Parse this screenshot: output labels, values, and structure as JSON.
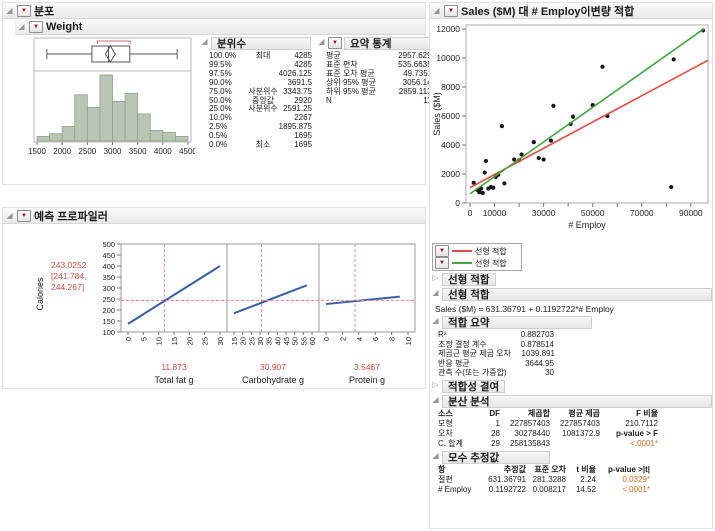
{
  "colors": {
    "fit_red": "#e8483f",
    "fit_green": "#43a83f",
    "profiler_line": "#3a5fa8",
    "crosshair_red": "#ef8a93",
    "histogram_fill": "#b9c6b3",
    "histogram_stroke": "#90a089",
    "red_value_text": "#d04a42",
    "pvalue_orange": "#d2691e",
    "point_black": "#161616",
    "box_stroke": "#555555",
    "bracket_red": "#d96a6a"
  },
  "distribution": {
    "title": "분포",
    "weight": {
      "title": "Weight"
    },
    "quantiles": {
      "title": "분위수",
      "rows": [
        [
          "100.0%",
          "최대",
          "4285"
        ],
        [
          "99.5%",
          "",
          "4285"
        ],
        [
          "97.5%",
          "",
          "4026.125"
        ],
        [
          "90.0%",
          "",
          "3691.5"
        ],
        [
          "75.0%",
          "사분위수",
          "3343.75"
        ],
        [
          "50.0%",
          "중앙값",
          "2920"
        ],
        [
          "25.0%",
          "사분위수",
          "2591.25"
        ],
        [
          "10.0%",
          "",
          "2267"
        ],
        [
          "2.5%",
          "",
          "1895.875"
        ],
        [
          "0.5%",
          "",
          "1695"
        ],
        [
          "0.0%",
          "최소",
          "1695"
        ]
      ]
    },
    "summary": {
      "title": "요약 통계",
      "rows": [
        [
          "평균",
          "2957.6293"
        ],
        [
          "표준 편차",
          "535.66353"
        ],
        [
          "표준 오차 평균",
          "49.73511"
        ],
        [
          "상위 95% 평균",
          "3056.145"
        ],
        [
          "하위 95% 평균",
          "2859.1136"
        ],
        [
          "N",
          "116"
        ]
      ]
    }
  },
  "profiler": {
    "title": "예측 프로파일러",
    "response_label": "Calories",
    "predicted_value": "243.0252",
    "ci_line1": "[241.784,",
    "ci_line2": "244.267]"
  },
  "bivariate": {
    "title": "Sales ($M) 대 # Employ이변량 적합",
    "xlabel": "# Employ",
    "ylabel": "Sales ($M)",
    "legend": [
      {
        "label": "선형 적합",
        "color": "#e8483f"
      },
      {
        "label": "선형 적합",
        "color": "#43a83f"
      }
    ],
    "fit_row_collapsed": "선형 적합",
    "fit_section_title": "선형 적합",
    "equation": "Sales ($M) = 631.36791 + 0.1192722*# Employ",
    "summary_of_fit": {
      "title": "적합 요약",
      "rows": [
        [
          "R²",
          "0.882703"
        ],
        [
          "조정 결정 계수",
          "0.878514"
        ],
        [
          "제곱근 평균 제곱 오차",
          "1039.891"
        ],
        [
          "반응 평균",
          "3644.95"
        ],
        [
          "관측 수(또는 가중합)",
          "30"
        ]
      ]
    },
    "lack_of_fit_title": "적합성 결여",
    "anova": {
      "title": "분산 분석",
      "headers": [
        "소스",
        "DF",
        "제곱합",
        "평균 제곱",
        "F 비율"
      ],
      "rows": [
        [
          "모형",
          "1",
          "227857403",
          "227857403",
          "210.7112"
        ],
        [
          "오차",
          "28",
          "30278440",
          "1081372.9",
          "p-value > F"
        ],
        [
          "C. 합계",
          "29",
          "258135843",
          "",
          "<.0001*"
        ]
      ]
    },
    "params": {
      "title": "모수 추정값",
      "headers": [
        "항",
        "추정값",
        "표준 오차",
        "t 비율",
        "p-value >|t|"
      ],
      "rows": [
        [
          "절편",
          "631.36791",
          "281.3288",
          "2.24",
          "0.0329*"
        ],
        [
          "# Employ",
          "0.1192722",
          "0.008217",
          "14.52",
          "<.0001*"
        ]
      ]
    }
  },
  "chart_data": [
    {
      "type": "bar",
      "variable": "Weight",
      "bin_start": 1500,
      "bin_width": 250,
      "bar_heights_rel": [
        0.07,
        0.11,
        0.22,
        0.7,
        0.51,
        1.0,
        0.6,
        0.72,
        0.41,
        0.16,
        0.13,
        0.07
      ],
      "x_ticks": [
        1500,
        2000,
        2500,
        3000,
        3500,
        4000,
        4500
      ],
      "xlim": [
        1440,
        4560
      ],
      "boxplot": {
        "min": 1695,
        "q1": 2591.25,
        "median": 2920,
        "q3": 3343.75,
        "max": 4285,
        "mean": 2957.63,
        "mean_ci": [
          2859.11,
          3056.14
        ],
        "shortest_half": [
          2700,
          3350
        ]
      }
    },
    {
      "type": "line",
      "title": "예측 프로파일러",
      "ylabel": "Calories",
      "ylim": [
        100,
        500
      ],
      "yticks": [
        100,
        150,
        200,
        250,
        300,
        350,
        400,
        450,
        500
      ],
      "current_y": 243.0252,
      "cells": [
        {
          "xlabel": "Total fat g",
          "xlim": [
            0,
            30
          ],
          "xticks": [
            0,
            5,
            10,
            15,
            20,
            25,
            30
          ],
          "current_x": 11.873,
          "current_x_label": "11.873",
          "line": [
            [
              0,
              137
            ],
            [
              30,
              400
            ]
          ]
        },
        {
          "xlabel": "Carbohydrate g",
          "xlim": [
            15,
            60
          ],
          "xticks": [
            15,
            20,
            25,
            30,
            35,
            40,
            45,
            50,
            55,
            60
          ],
          "current_x": 30.907,
          "current_x_label": "30.907",
          "line": [
            [
              15,
              185
            ],
            [
              57,
              312
            ]
          ]
        },
        {
          "xlabel": "Protein g",
          "xlim": [
            0,
            10
          ],
          "xticks": [
            0,
            2,
            4,
            6,
            8,
            10
          ],
          "current_x": 3.5467,
          "current_x_label": "3.5467",
          "line": [
            [
              0,
              227
            ],
            [
              9,
              261
            ]
          ]
        }
      ]
    },
    {
      "type": "scatter",
      "title": "Sales ($M) 대 # Employ이변량 적합",
      "xlabel": "# Employ",
      "ylabel": "Sales ($M)",
      "xlim": [
        0,
        97000
      ],
      "ylim": [
        0,
        12000
      ],
      "xticks_labeled": [
        0,
        10000,
        30000,
        50000,
        70000,
        90000
      ],
      "xticks_all": [
        0,
        10000,
        20000,
        30000,
        40000,
        50000,
        60000,
        70000,
        80000,
        90000
      ],
      "yticks": [
        0,
        2000,
        4000,
        6000,
        8000,
        10000,
        12000
      ],
      "points": [
        [
          1500,
          1400
        ],
        [
          3000,
          900
        ],
        [
          3800,
          750
        ],
        [
          4500,
          1000
        ],
        [
          5200,
          700
        ],
        [
          6000,
          2100
        ],
        [
          6500,
          2900
        ],
        [
          7500,
          1000
        ],
        [
          8500,
          1100
        ],
        [
          9500,
          1050
        ],
        [
          10500,
          1800
        ],
        [
          11500,
          1950
        ],
        [
          13000,
          5300
        ],
        [
          14000,
          1350
        ],
        [
          18000,
          3000
        ],
        [
          20000,
          2950
        ],
        [
          21000,
          3350
        ],
        [
          26000,
          4200
        ],
        [
          28000,
          3100
        ],
        [
          30000,
          3000
        ],
        [
          33000,
          4300
        ],
        [
          34000,
          6700
        ],
        [
          41000,
          5450
        ],
        [
          42000,
          5950
        ],
        [
          50000,
          6750
        ],
        [
          54000,
          9400
        ],
        [
          56000,
          6000
        ],
        [
          82000,
          1100
        ],
        [
          83000,
          9900
        ],
        [
          95000,
          11900
        ]
      ],
      "fit_lines": [
        {
          "name": "선형 적합",
          "color": "#e8483f",
          "x": [
            0,
            97000
          ],
          "y": [
            1060,
            9840
          ]
        },
        {
          "name": "선형 적합",
          "color": "#43a83f",
          "x": [
            0,
            95500
          ],
          "y": [
            631,
            12030
          ]
        }
      ]
    }
  ]
}
